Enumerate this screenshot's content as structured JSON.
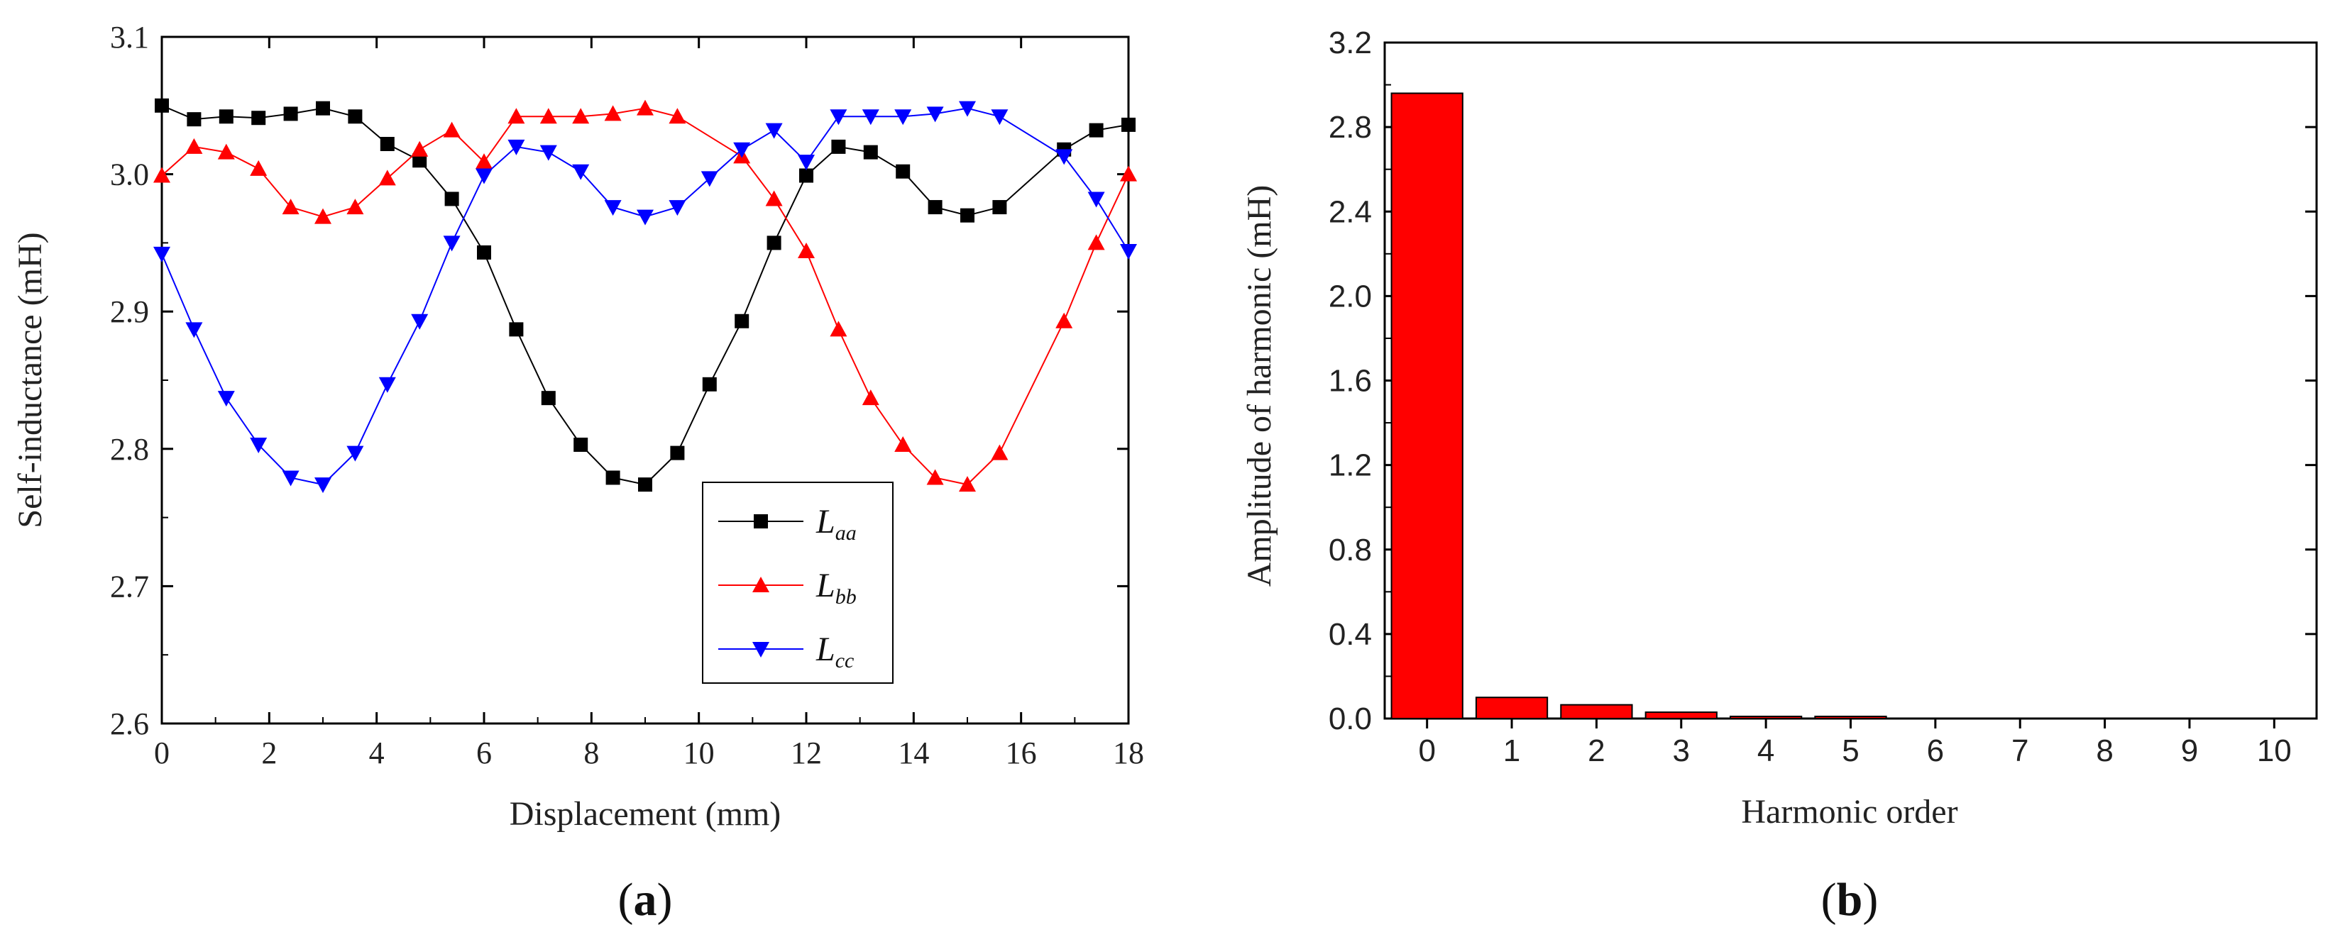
{
  "chart_data": [
    {
      "type": "line",
      "panel_label": "a",
      "xlabel": "Displacement (mm)",
      "ylabel": "Self-inductance (mH)",
      "xlim": [
        0,
        18
      ],
      "ylim": [
        2.6,
        3.1
      ],
      "xticks": [
        "0",
        "2",
        "4",
        "6",
        "8",
        "10",
        "12",
        "14",
        "16",
        "18"
      ],
      "yticks": [
        "2.6",
        "2.7",
        "2.8",
        "2.9",
        "3.0",
        "3.1"
      ],
      "legend_position": "lower-right",
      "x": [
        0,
        0.6,
        1.2,
        1.8,
        2.4,
        3.0,
        3.6,
        4.2,
        4.8,
        5.4,
        6.0,
        6.6,
        7.2,
        7.8,
        8.4,
        9.0,
        9.6,
        10.2,
        10.8,
        11.4,
        12.0,
        12.6,
        13.2,
        13.8,
        14.4,
        15.0,
        15.6,
        16.2,
        16.8,
        17.4,
        18.0
      ],
      "series": [
        {
          "name": "L",
          "subscript": "aa",
          "color": "#000000",
          "marker": "square",
          "values": [
            3.05,
            3.04,
            3.042,
            3.041,
            3.044,
            3.048,
            3.042,
            3.022,
            3.01,
            2.982,
            2.943,
            2.887,
            2.837,
            2.803,
            2.779,
            2.774,
            2.797,
            2.847,
            2.893,
            2.95,
            2.999,
            3.02,
            3.016,
            3.002,
            2.976,
            2.97,
            2.976,
            null,
            3.018,
            3.032,
            3.036
          ]
        },
        {
          "name": "L",
          "subscript": "bb",
          "color": "#ff0000",
          "marker": "triangle-up",
          "values": [
            2.999,
            3.02,
            3.016,
            3.004,
            2.976,
            2.969,
            2.976,
            2.997,
            3.018,
            3.032,
            3.009,
            3.042,
            3.042,
            3.042,
            3.044,
            3.048,
            3.042,
            null,
            3.013,
            2.982,
            2.944,
            2.887,
            2.837,
            2.803,
            2.779,
            2.774,
            2.797,
            null,
            2.893,
            2.95,
            3.0
          ]
        },
        {
          "name": "L",
          "subscript": "cc",
          "color": "#0000ff",
          "marker": "triangle-down",
          "values": [
            2.942,
            2.887,
            2.837,
            2.803,
            2.779,
            2.774,
            2.797,
            2.847,
            2.893,
            2.95,
            2.999,
            3.02,
            3.016,
            3.002,
            2.976,
            2.969,
            2.976,
            2.997,
            3.018,
            3.032,
            3.009,
            3.042,
            3.042,
            3.042,
            3.044,
            3.048,
            3.042,
            null,
            3.013,
            2.982,
            2.944
          ]
        }
      ]
    },
    {
      "type": "bar",
      "panel_label": "b",
      "xlabel": "Harmonic order",
      "ylabel": "Amplitude of harmonic (mH)",
      "categories": [
        "0",
        "1",
        "2",
        "3",
        "4",
        "5",
        "6",
        "7",
        "8",
        "9",
        "10"
      ],
      "values": [
        2.96,
        0.1,
        0.065,
        0.03,
        0.008,
        0.004,
        0,
        0,
        0,
        0,
        0
      ],
      "ylim": [
        0,
        3.2
      ],
      "yticks": [
        "0.0",
        "0.4",
        "0.8",
        "1.2",
        "1.6",
        "2.0",
        "2.4",
        "2.8",
        "3.2"
      ],
      "bar_color": "#ff0000"
    }
  ],
  "captions": {
    "a": {
      "open": "(",
      "letter": "a",
      "close": ")"
    },
    "b": {
      "open": "(",
      "letter": "b",
      "close": ")"
    }
  }
}
